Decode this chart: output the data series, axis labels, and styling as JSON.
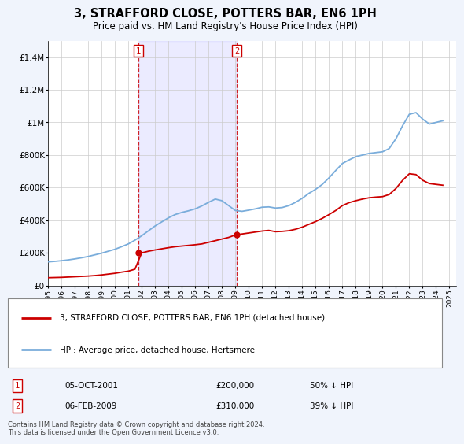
{
  "title": "3, STRAFFORD CLOSE, POTTERS BAR, EN6 1PH",
  "subtitle": "Price paid vs. HM Land Registry's House Price Index (HPI)",
  "legend_line1": "3, STRAFFORD CLOSE, POTTERS BAR, EN6 1PH (detached house)",
  "legend_line2": "HPI: Average price, detached house, Hertsmere",
  "transaction1_date": "05-OCT-2001",
  "transaction1_price": "£200,000",
  "transaction1_hpi": "50% ↓ HPI",
  "transaction2_date": "06-FEB-2009",
  "transaction2_price": "£310,000",
  "transaction2_hpi": "39% ↓ HPI",
  "footnote": "Contains HM Land Registry data © Crown copyright and database right 2024.\nThis data is licensed under the Open Government Licence v3.0.",
  "hpi_color": "#7aaddb",
  "price_color": "#cc0000",
  "vline_color": "#cc0000",
  "background_color": "#f0f4fc",
  "plot_bg_color": "#ffffff",
  "ylim": [
    0,
    1500000
  ],
  "yticks": [
    0,
    200000,
    400000,
    600000,
    800000,
    1000000,
    1200000,
    1400000
  ],
  "ytick_labels": [
    "£0",
    "£200K",
    "£400K",
    "£600K",
    "£800K",
    "£1M",
    "£1.2M",
    "£1.4M"
  ],
  "transaction1_x": 2001.75,
  "transaction2_x": 2009.1,
  "hpi_years": [
    1995,
    1995.5,
    1996,
    1996.5,
    1997,
    1997.5,
    1998,
    1998.5,
    1999,
    1999.5,
    2000,
    2000.5,
    2001,
    2001.5,
    2002,
    2002.5,
    2003,
    2003.5,
    2004,
    2004.5,
    2005,
    2005.5,
    2006,
    2006.5,
    2007,
    2007.5,
    2008,
    2008.5,
    2009,
    2009.5,
    2010,
    2010.5,
    2011,
    2011.5,
    2012,
    2012.5,
    2013,
    2013.5,
    2014,
    2014.5,
    2015,
    2015.5,
    2016,
    2016.5,
    2017,
    2017.5,
    2018,
    2018.5,
    2019,
    2019.5,
    2020,
    2020.5,
    2021,
    2021.5,
    2022,
    2022.5,
    2023,
    2023.5,
    2024,
    2024.5
  ],
  "hpi_values": [
    145000,
    148000,
    152000,
    157000,
    163000,
    170000,
    178000,
    188000,
    198000,
    210000,
    222000,
    238000,
    255000,
    278000,
    305000,
    335000,
    365000,
    390000,
    415000,
    435000,
    448000,
    458000,
    470000,
    488000,
    510000,
    530000,
    520000,
    490000,
    460000,
    455000,
    462000,
    470000,
    480000,
    482000,
    475000,
    478000,
    490000,
    510000,
    535000,
    565000,
    590000,
    620000,
    660000,
    705000,
    748000,
    770000,
    790000,
    800000,
    810000,
    815000,
    820000,
    840000,
    900000,
    980000,
    1050000,
    1060000,
    1020000,
    990000,
    1000000,
    1010000
  ],
  "price_years": [
    1995,
    1995.5,
    1996,
    1996.5,
    1997,
    1997.5,
    1998,
    1998.5,
    1999,
    1999.5,
    2000,
    2000.5,
    2001,
    2001.5,
    2002,
    2002.5,
    2003,
    2003.5,
    2004,
    2004.5,
    2005,
    2005.5,
    2006,
    2006.5,
    2007,
    2007.5,
    2008,
    2008.5,
    2009,
    2009.5,
    2010,
    2010.5,
    2011,
    2011.5,
    2012,
    2012.5,
    2013,
    2013.5,
    2014,
    2014.5,
    2015,
    2015.5,
    2016,
    2016.5,
    2017,
    2017.5,
    2018,
    2018.5,
    2019,
    2019.5,
    2020,
    2020.5,
    2021,
    2021.5,
    2022,
    2022.5,
    2023,
    2023.5,
    2024,
    2024.5
  ],
  "price_values": [
    48000,
    49000,
    50000,
    52000,
    54000,
    56000,
    58000,
    61000,
    65000,
    70000,
    75000,
    82000,
    88000,
    100000,
    200000,
    210000,
    218000,
    225000,
    232000,
    238000,
    242000,
    246000,
    250000,
    255000,
    265000,
    275000,
    285000,
    295000,
    310000,
    316000,
    322000,
    328000,
    334000,
    338000,
    330000,
    332000,
    336000,
    345000,
    358000,
    375000,
    392000,
    412000,
    435000,
    460000,
    490000,
    508000,
    520000,
    530000,
    538000,
    542000,
    545000,
    558000,
    595000,
    645000,
    685000,
    680000,
    645000,
    625000,
    620000,
    615000
  ]
}
